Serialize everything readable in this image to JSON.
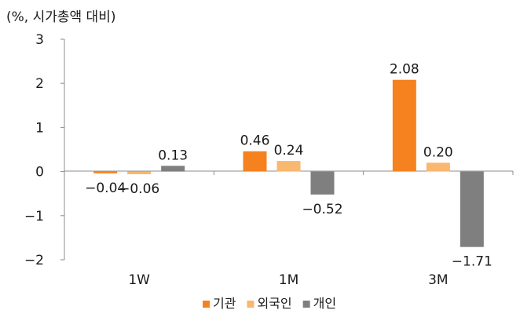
{
  "chart_data": {
    "type": "bar",
    "title": "",
    "ylabel": "(%, 시가총액 대비)",
    "xlabel": "",
    "categories": [
      "1W",
      "1M",
      "3M"
    ],
    "ylim": [
      -2,
      3
    ],
    "yticks": [
      3,
      2,
      1,
      0,
      -1,
      -2
    ],
    "ytick_labels": [
      "3",
      "2",
      "1",
      "0",
      "−1",
      "−2"
    ],
    "grid": false,
    "legend_position": "bottom-center",
    "series": [
      {
        "name": "기관",
        "color": "#F5821F",
        "values": [
          -0.04,
          0.46,
          2.08
        ],
        "labels": [
          "−0.04",
          "0.46",
          "2.08"
        ]
      },
      {
        "name": "외국인",
        "color": "#F9B76F",
        "values": [
          -0.06,
          0.24,
          0.2
        ],
        "labels": [
          "−0.06",
          "0.24",
          "0.20"
        ]
      },
      {
        "name": "개인",
        "color": "#7F7F7F",
        "values": [
          0.13,
          -0.52,
          -1.71
        ],
        "labels": [
          "0.13",
          "−0.52",
          "−1.71"
        ]
      }
    ]
  }
}
